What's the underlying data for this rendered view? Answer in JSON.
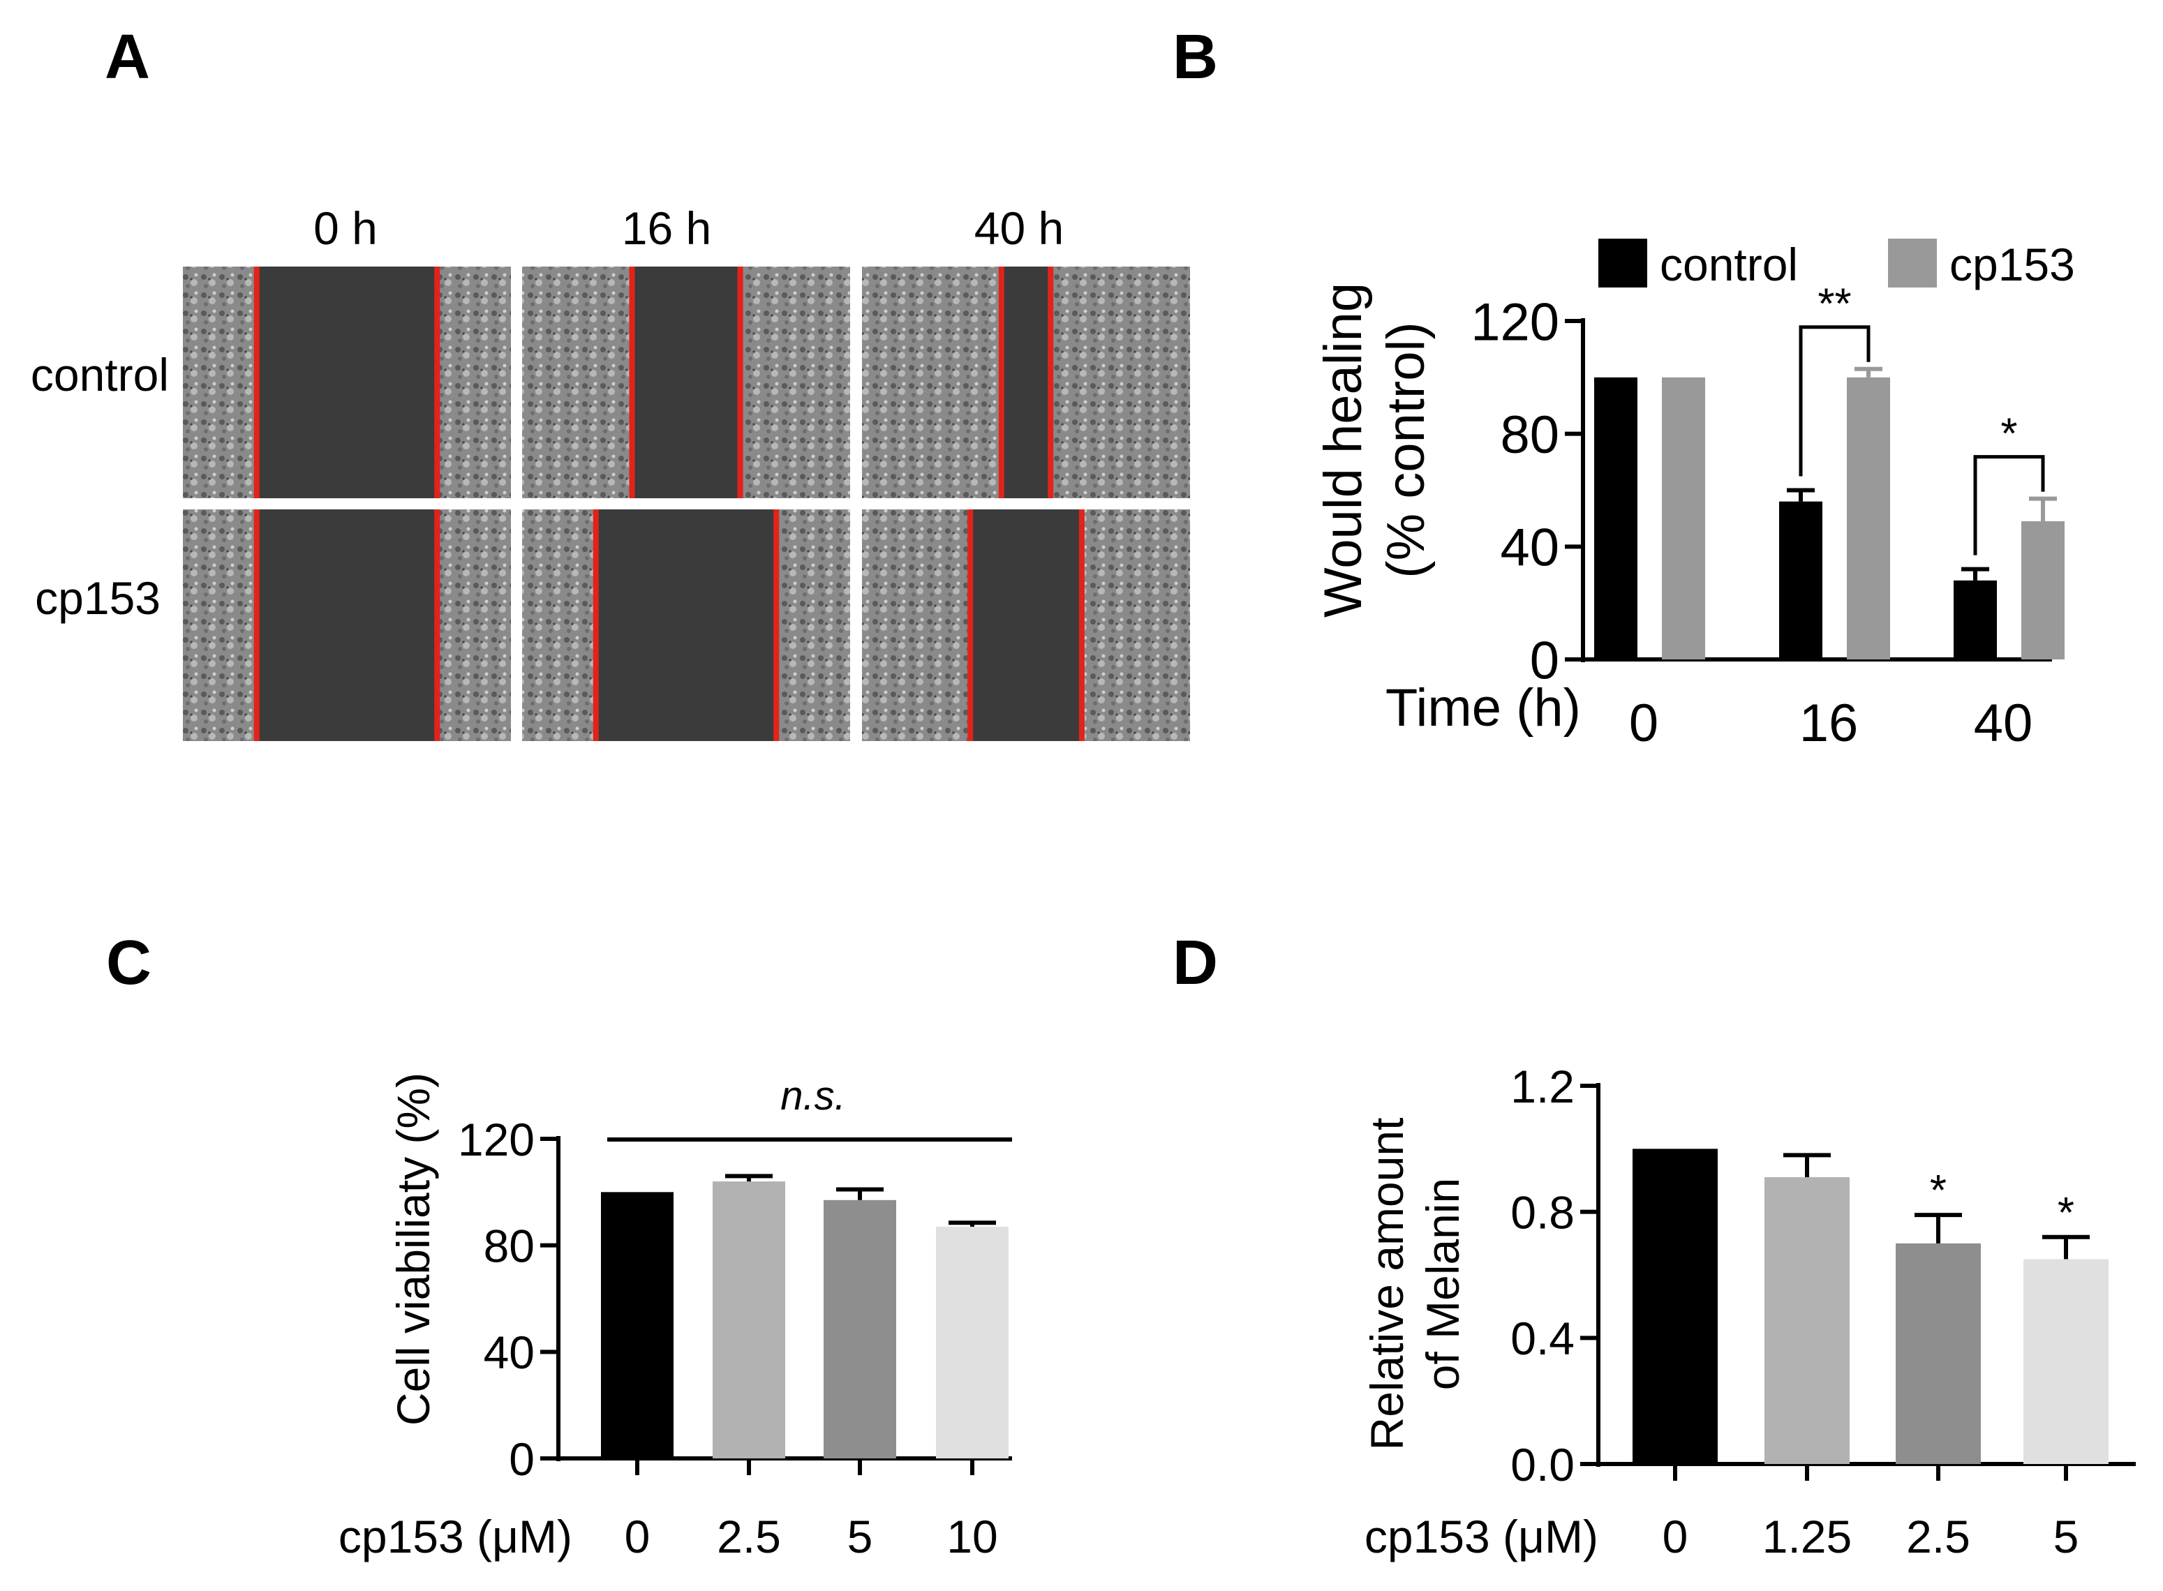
{
  "panel_letters": [
    "A",
    "B",
    "C",
    "D"
  ],
  "panel_a": {
    "time_labels": [
      "0 h",
      "16 h",
      "40 h"
    ],
    "row_labels": [
      "control",
      "cp153"
    ],
    "gap_fraction_control": [
      0.55,
      0.33,
      0.15
    ],
    "gap_fraction_cp153": [
      0.55,
      0.55,
      0.34
    ],
    "line_color": "#e2231a"
  },
  "chart_data": [
    {
      "id": "B",
      "type": "bar",
      "ylabel": "Would healing",
      "ylabel_sub": "(% control)",
      "xlabel": "Time (h)",
      "categories": [
        "0",
        "16",
        "40"
      ],
      "yticks": [
        "0",
        "40",
        "80",
        "120"
      ],
      "ylim": [
        0,
        120
      ],
      "series": [
        {
          "name": "control",
          "color": "#000000",
          "values": [
            100,
            56,
            28
          ],
          "errors": [
            0,
            4,
            4
          ]
        },
        {
          "name": "cp153",
          "color": "#999999",
          "values": [
            100,
            100,
            49
          ],
          "errors": [
            0,
            3,
            8
          ]
        }
      ],
      "annotations": [
        {
          "text": "**",
          "category": 1
        },
        {
          "text": "*",
          "category": 2
        }
      ]
    },
    {
      "id": "C",
      "type": "bar",
      "ylabel": "Cell viabiliaty (%)",
      "xlabel": "cp153 (μM)",
      "categories": [
        "0",
        "2.5",
        "5",
        "10"
      ],
      "yticks": [
        "0",
        "40",
        "80",
        "120"
      ],
      "ylim": [
        0,
        120
      ],
      "values": [
        100,
        104,
        97,
        87
      ],
      "errors": [
        0,
        2,
        4,
        1.5
      ],
      "colors": [
        "#000000",
        "#b2b2b2",
        "#8e8e8e",
        "#e0e0e0"
      ],
      "annotation": "n.s."
    },
    {
      "id": "D",
      "type": "bar",
      "ylabel": "Relative amount",
      "ylabel_sub": "of Melanin",
      "xlabel": "cp153 (μM)",
      "categories": [
        "0",
        "1.25",
        "2.5",
        "5"
      ],
      "yticks": [
        "0.0",
        "0.4",
        "0.8",
        "1.2"
      ],
      "ylim": [
        0,
        1.2
      ],
      "values": [
        1.0,
        0.91,
        0.7,
        0.65
      ],
      "errors": [
        0,
        0.07,
        0.09,
        0.07
      ],
      "colors": [
        "#000000",
        "#b2b2b2",
        "#8e8e8e",
        "#e0e0e0"
      ],
      "annotations": [
        "",
        "",
        "*",
        "*"
      ]
    }
  ]
}
